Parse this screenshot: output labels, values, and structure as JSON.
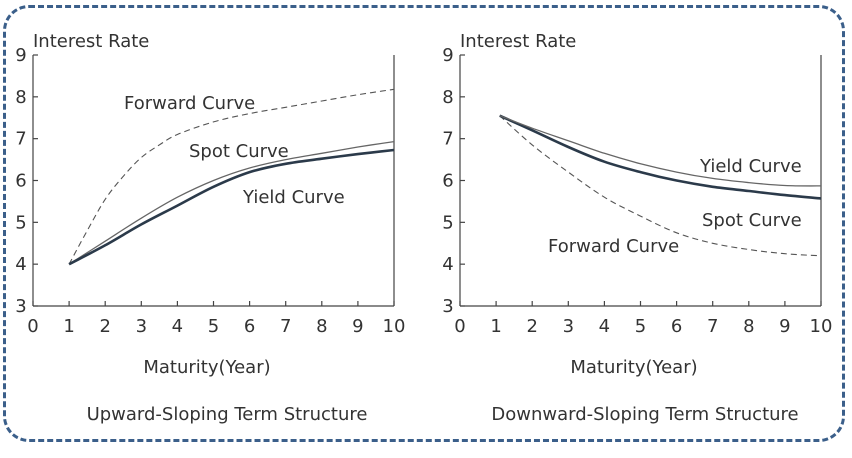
{
  "chart_data": [
    {
      "type": "line",
      "ylabel": "Interest Rate",
      "xlabel": "Maturity(Year)",
      "caption": "Upward-Sloping Term Structure",
      "xlim": [
        0,
        10
      ],
      "ylim": [
        3,
        9
      ],
      "xticks": [
        "0",
        "1",
        "2",
        "3",
        "4",
        "5",
        "6",
        "7",
        "8",
        "9",
        "10"
      ],
      "yticks": [
        "3",
        "4",
        "5",
        "6",
        "7",
        "8",
        "9"
      ],
      "series": [
        {
          "name": "Forward Curve",
          "style": "dashed",
          "color": "#555555",
          "width": 1.1,
          "x": [
            1,
            1.5,
            2,
            2.5,
            3,
            3.5,
            4,
            5,
            6,
            7,
            8,
            9,
            10
          ],
          "y": [
            4.0,
            4.8,
            5.55,
            6.1,
            6.55,
            6.85,
            7.1,
            7.4,
            7.6,
            7.75,
            7.9,
            8.05,
            8.18
          ]
        },
        {
          "name": "Spot Curve",
          "style": "solid",
          "color": "#666666",
          "width": 1.3,
          "x": [
            1,
            2,
            3,
            4,
            5,
            6,
            7,
            8,
            9,
            10
          ],
          "y": [
            4.0,
            4.55,
            5.1,
            5.6,
            6.0,
            6.3,
            6.5,
            6.65,
            6.8,
            6.93
          ]
        },
        {
          "name": "Yield Curve",
          "style": "solid",
          "color": "#2b3a4a",
          "width": 2.6,
          "x": [
            1,
            2,
            3,
            4,
            5,
            6,
            7,
            8,
            9,
            10
          ],
          "y": [
            4.0,
            4.45,
            4.95,
            5.4,
            5.85,
            6.2,
            6.4,
            6.52,
            6.63,
            6.73
          ]
        }
      ]
    },
    {
      "type": "line",
      "ylabel": "Interest Rate",
      "xlabel": "Maturity(Year)",
      "caption": "Downward-Sloping Term Structure",
      "xlim": [
        0,
        10
      ],
      "ylim": [
        3,
        9
      ],
      "xticks": [
        "0",
        "1",
        "2",
        "3",
        "4",
        "5",
        "6",
        "7",
        "8",
        "9",
        "10"
      ],
      "yticks": [
        "3",
        "4",
        "5",
        "6",
        "7",
        "8",
        "9"
      ],
      "series": [
        {
          "name": "Forward Curve",
          "style": "dashed",
          "color": "#555555",
          "width": 1.1,
          "x": [
            1.1,
            2,
            3,
            4,
            5,
            6,
            7,
            8,
            9,
            10
          ],
          "y": [
            7.55,
            6.85,
            6.2,
            5.6,
            5.15,
            4.75,
            4.5,
            4.35,
            4.25,
            4.2
          ]
        },
        {
          "name": "Spot Curve",
          "style": "solid",
          "color": "#2b3a4a",
          "width": 2.6,
          "x": [
            1.1,
            2,
            3,
            4,
            5,
            6,
            7,
            8,
            9,
            10
          ],
          "y": [
            7.55,
            7.2,
            6.8,
            6.45,
            6.2,
            6.0,
            5.85,
            5.75,
            5.65,
            5.57
          ]
        },
        {
          "name": "Yield Curve",
          "style": "solid",
          "color": "#666666",
          "width": 1.3,
          "x": [
            1.1,
            2,
            3,
            4,
            5,
            6,
            7,
            8,
            9,
            10
          ],
          "y": [
            7.55,
            7.25,
            6.95,
            6.65,
            6.4,
            6.2,
            6.05,
            5.95,
            5.88,
            5.87
          ]
        }
      ]
    }
  ]
}
